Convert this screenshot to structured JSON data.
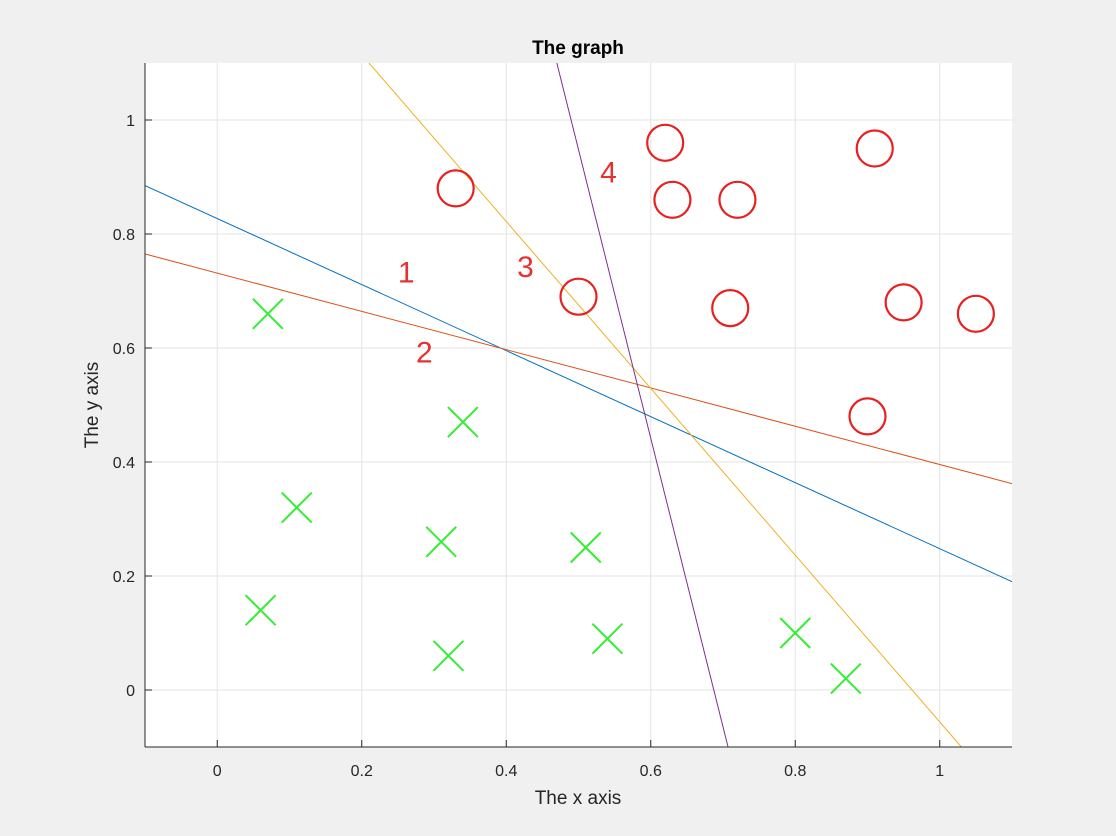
{
  "chart_data": {
    "type": "scatter",
    "title": "The graph",
    "xlabel": "The x axis",
    "ylabel": "The y axis",
    "xlim": [
      -0.1,
      1.1
    ],
    "ylim": [
      -0.1,
      1.1
    ],
    "xticks": [
      0,
      0.2,
      0.4,
      0.6,
      0.8,
      1
    ],
    "yticks": [
      0,
      0.2,
      0.4,
      0.6,
      0.8,
      1
    ],
    "xtick_labels": [
      "0",
      "0.2",
      "0.4",
      "0.6",
      "0.8",
      "1"
    ],
    "ytick_labels": [
      "0",
      "0.2",
      "0.4",
      "0.6",
      "0.8",
      "1"
    ],
    "grid": true,
    "series": [
      {
        "marker": "x",
        "color": "#33ee33",
        "points": [
          [
            0.07,
            0.66
          ],
          [
            0.11,
            0.32
          ],
          [
            0.06,
            0.14
          ],
          [
            0.34,
            0.47
          ],
          [
            0.31,
            0.26
          ],
          [
            0.32,
            0.06
          ],
          [
            0.51,
            0.25
          ],
          [
            0.54,
            0.09
          ],
          [
            0.8,
            0.1
          ],
          [
            0.87,
            0.02
          ]
        ]
      },
      {
        "marker": "o",
        "color": "#e82020",
        "points": [
          [
            0.33,
            0.88
          ],
          [
            0.5,
            0.69
          ],
          [
            0.62,
            0.96
          ],
          [
            0.63,
            0.86
          ],
          [
            0.72,
            0.86
          ],
          [
            0.71,
            0.67
          ],
          [
            0.91,
            0.95
          ],
          [
            0.95,
            0.68
          ],
          [
            1.05,
            0.66
          ],
          [
            0.9,
            0.48
          ]
        ]
      }
    ],
    "lines": [
      {
        "color": "#0072bd",
        "points": [
          [
            -0.1,
            0.885
          ],
          [
            1.1,
            0.19
          ]
        ]
      },
      {
        "color": "#d95319",
        "points": [
          [
            -0.1,
            0.765
          ],
          [
            1.1,
            0.362
          ]
        ]
      },
      {
        "color": "#edb120",
        "points": [
          [
            0.21,
            1.1
          ],
          [
            1.03,
            -0.1
          ]
        ]
      },
      {
        "color": "#7e2f8e",
        "points": [
          [
            0.47,
            1.1
          ],
          [
            0.707,
            -0.1
          ]
        ]
      }
    ],
    "annotations": [
      {
        "text": "1",
        "x": 0.25,
        "y": 0.715,
        "color": "#e83030"
      },
      {
        "text": "2",
        "x": 0.275,
        "y": 0.575,
        "color": "#e83030"
      },
      {
        "text": "3",
        "x": 0.415,
        "y": 0.725,
        "color": "#e83030"
      },
      {
        "text": "4",
        "x": 0.53,
        "y": 0.89,
        "color": "#e83030"
      }
    ]
  }
}
